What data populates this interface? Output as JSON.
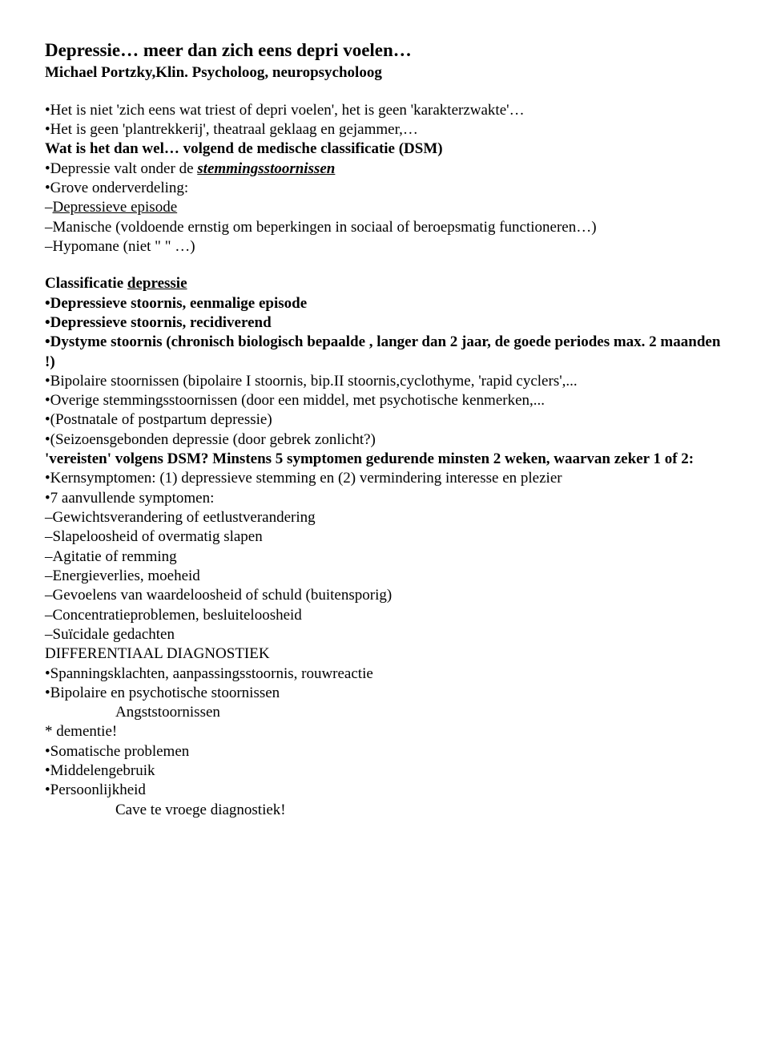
{
  "title": "Depressie… meer dan zich eens depri voelen…",
  "author": "Michael Portzky,Klin. Psycholoog, neuropsycholoog",
  "l1": "•Het is niet 'zich eens wat triest of depri voelen', het is geen 'karakterzwakte'…",
  "l2": "•Het is geen 'plantrekkerij', theatraal geklaag en gejammer,…",
  "l3": "Wat is het dan wel… volgend de medische classificatie (DSM)",
  "l4a": "•Depressie valt onder de ",
  "l4b": "stemmingsstoornissen",
  "l5": "•Grove onderverdeling:",
  "l6a": "–",
  "l6b": "Depressieve episode",
  "l7": "–Manische (voldoende ernstig om beperkingen in sociaal of beroepsmatig functioneren…)",
  "l8": "–Hypomane (niet  \"            \" …)",
  "c_head_a": "Classificatie ",
  "c_head_b": "depressie",
  "c1": "•Depressieve stoornis, eenmalige episode",
  "c2": "•Depressieve stoornis, recidiverend",
  "c3": "•Dystyme stoornis (chronisch biologisch bepaalde , langer dan 2 jaar, de goede periodes max. 2 maanden !)",
  "c4": "•Bipolaire stoornissen (bipolaire I stoornis, bip.II stoornis,cyclothyme, 'rapid cyclers',...",
  "c5": "•Overige stemmingsstoornissen (door een middel, met psychotische kenmerken,...",
  "c6": "•(Postnatale of postpartum depressie)",
  "c7": "•(Seizoensgebonden depressie (door gebrek zonlicht?)",
  "c8": "'vereisten' volgens DSM? Minstens 5 symptomen gedurende minsten 2 weken, waarvan zeker 1 of 2:",
  "c9": "•Kernsymptomen: (1) depressieve stemming en (2) vermindering interesse en plezier",
  "c10": "•7 aanvullende symptomen:",
  "c11": "–Gewichtsverandering of eetlustverandering",
  "c12": "–Slapeloosheid of overmatig slapen",
  "c13": "–Agitatie of remming",
  "c14": "–Energieverlies, moeheid",
  "c15": "–Gevoelens van waardeloosheid of schuld (buitensporig)",
  "c16": "–Concentratieproblemen, besluiteloosheid",
  "c17": "–Suïcidale gedachten",
  "d_head": "DIFFERENTIAAL DIAGNOSTIEK",
  "d1": "•Spanningsklachten, aanpassingsstoornis, rouwreactie",
  "d2": "•Bipolaire en psychotische stoornissen",
  "d3": "Angststoornissen",
  "d4": "* dementie!",
  "d5": "•Somatische problemen",
  "d6": "•Middelengebruik",
  "d7": "•Persoonlijkheid",
  "d8": "Cave te vroege diagnostiek!"
}
